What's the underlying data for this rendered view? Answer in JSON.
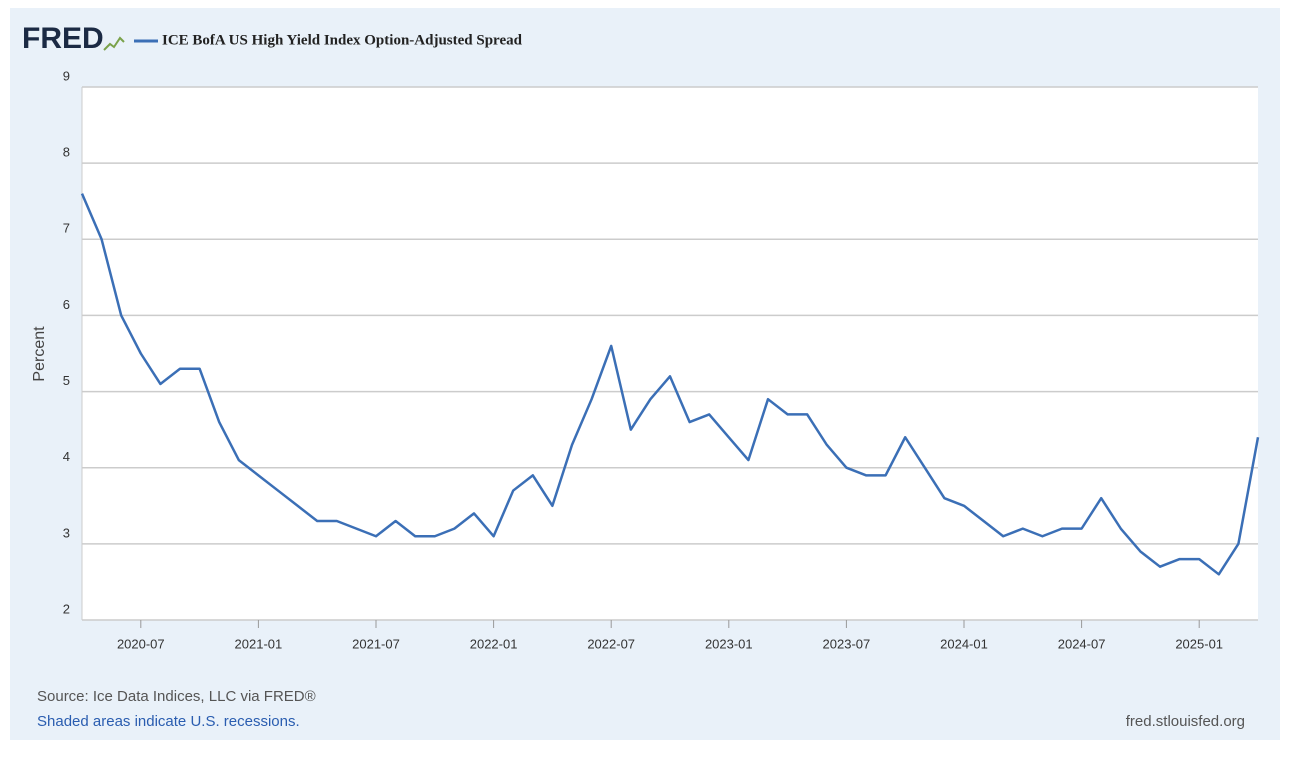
{
  "chart_data": {
    "type": "line",
    "logo": "FRED",
    "y_label": "Percent",
    "source": "Source: Ice Data Indices, LLC via FRED®",
    "note": "Shaded areas indicate U.S. recessions.",
    "site": "fred.stlouisfed.org",
    "x": [
      "2020-04",
      "2020-05",
      "2020-06",
      "2020-07",
      "2020-08",
      "2020-09",
      "2020-10",
      "2020-11",
      "2020-12",
      "2021-01",
      "2021-02",
      "2021-03",
      "2021-04",
      "2021-05",
      "2021-06",
      "2021-07",
      "2021-08",
      "2021-09",
      "2021-10",
      "2021-11",
      "2021-12",
      "2022-01",
      "2022-02",
      "2022-03",
      "2022-04",
      "2022-05",
      "2022-06",
      "2022-07",
      "2022-08",
      "2022-09",
      "2022-10",
      "2022-11",
      "2022-12",
      "2023-01",
      "2023-02",
      "2023-03",
      "2023-04",
      "2023-05",
      "2023-06",
      "2023-07",
      "2023-08",
      "2023-09",
      "2023-10",
      "2023-11",
      "2023-12",
      "2024-01",
      "2024-02",
      "2024-03",
      "2024-04",
      "2024-05",
      "2024-06",
      "2024-07",
      "2024-08",
      "2024-09",
      "2024-10",
      "2024-11",
      "2024-12",
      "2025-01",
      "2025-02",
      "2025-03",
      "2025-04"
    ],
    "series": [
      {
        "name": "ICE BofA US High Yield Index Option-Adjusted Spread",
        "color": "#3b6fb6",
        "values": [
          7.6,
          7.0,
          6.0,
          5.5,
          5.1,
          5.3,
          5.3,
          4.6,
          4.1,
          3.9,
          3.7,
          3.5,
          3.3,
          3.3,
          3.2,
          3.1,
          3.3,
          3.1,
          3.1,
          3.2,
          3.4,
          3.1,
          3.7,
          3.9,
          3.5,
          4.3,
          4.9,
          5.6,
          4.5,
          4.9,
          5.2,
          4.6,
          4.7,
          4.4,
          4.1,
          4.9,
          4.7,
          4.7,
          4.3,
          4.0,
          3.9,
          3.9,
          4.4,
          4.0,
          3.6,
          3.5,
          3.3,
          3.1,
          3.2,
          3.1,
          3.2,
          3.2,
          3.6,
          3.2,
          2.9,
          2.7,
          2.8,
          2.8,
          2.6,
          3.0,
          4.4
        ]
      }
    ],
    "xlim": [
      "2020-04",
      "2025-04"
    ],
    "xticks": [
      "2020-07",
      "2021-01",
      "2021-07",
      "2022-01",
      "2022-07",
      "2023-01",
      "2023-07",
      "2024-01",
      "2024-07",
      "2025-01"
    ],
    "ylim": [
      2,
      9
    ],
    "yticks": [
      2,
      3,
      4,
      5,
      6,
      7,
      8,
      9
    ],
    "grid": true
  }
}
